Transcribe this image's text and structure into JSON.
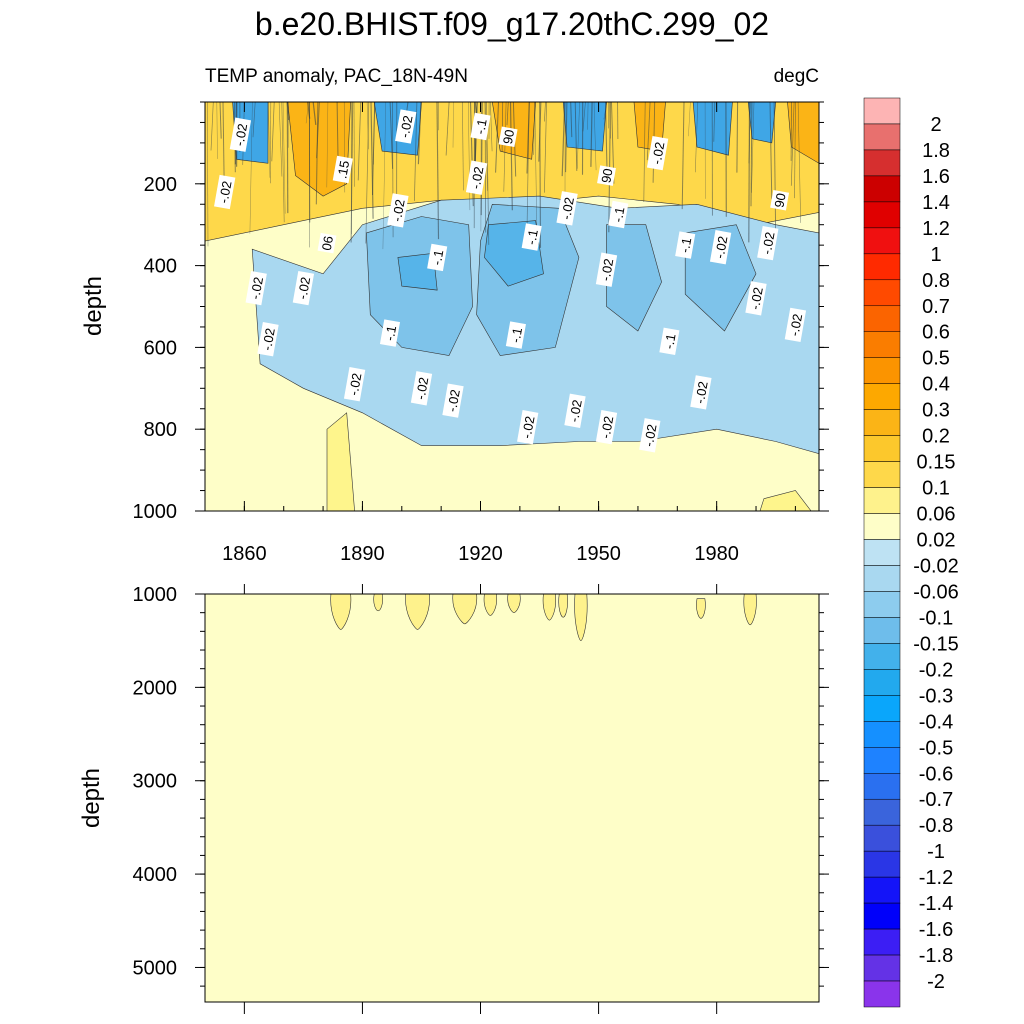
{
  "chart_data": [
    {
      "type": "heatmap",
      "panel": "upper",
      "title": "b.e20.BHIST.f09_g17.20thC.299_02",
      "subtitle_left": "TEMP anomaly, PAC_18N-49N",
      "subtitle_right": "degC",
      "xlabel": "",
      "ylabel": "depth",
      "xlim": [
        1850,
        2006
      ],
      "ylim": [
        0,
        1000
      ],
      "y_inverted": true,
      "x_ticks": [
        1860,
        1890,
        1920,
        1950,
        1980
      ],
      "y_ticks": [
        200,
        400,
        600,
        800,
        1000
      ],
      "bands": [
        {
          "name": "warm-surface",
          "fill": "#fed84a",
          "points": [
            [
              1850,
              0
            ],
            [
              2006,
              0
            ],
            [
              2006,
              270
            ],
            [
              1990,
              300
            ],
            [
              1970,
              250
            ],
            [
              1950,
              230
            ],
            [
              1930,
              250
            ],
            [
              1910,
              240
            ],
            [
              1890,
              260
            ],
            [
              1870,
              300
            ],
            [
              1850,
              340
            ]
          ]
        },
        {
          "name": "strong-warm-1878",
          "fill": "#fbb416",
          "points": [
            [
              1871,
              0
            ],
            [
              1887,
              0
            ],
            [
              1886,
              200
            ],
            [
              1880,
              230
            ],
            [
              1873,
              180
            ]
          ]
        },
        {
          "name": "strong-warm-1927",
          "fill": "#fbb416",
          "points": [
            [
              1923,
              0
            ],
            [
              1934,
              0
            ],
            [
              1933,
              140
            ],
            [
              1925,
              120
            ]
          ]
        },
        {
          "name": "strong-warm-1962",
          "fill": "#fbb416",
          "points": [
            [
              1959,
              0
            ],
            [
              1967,
              0
            ],
            [
              1966,
              120
            ],
            [
              1960,
              110
            ]
          ]
        },
        {
          "name": "strong-warm-2002",
          "fill": "#fbb416",
          "points": [
            [
              1998,
              0
            ],
            [
              2006,
              0
            ],
            [
              2006,
              150
            ],
            [
              1999,
              110
            ]
          ]
        },
        {
          "name": "cool-lens",
          "fill": "#a9d8f0",
          "points": [
            [
              1862,
              360
            ],
            [
              1880,
              420
            ],
            [
              1890,
              300
            ],
            [
              1910,
              240
            ],
            [
              1935,
              230
            ],
            [
              1955,
              260
            ],
            [
              1975,
              250
            ],
            [
              1995,
              300
            ],
            [
              2006,
              320
            ],
            [
              2006,
              860
            ],
            [
              1995,
              830
            ],
            [
              1980,
              800
            ],
            [
              1960,
              830
            ],
            [
              1945,
              830
            ],
            [
              1925,
              840
            ],
            [
              1905,
              840
            ],
            [
              1890,
              760
            ],
            [
              1875,
              700
            ],
            [
              1864,
              640
            ]
          ]
        },
        {
          "name": "mid-cool-1",
          "fill": "#7ec3ea",
          "points": [
            [
              1891,
              320
            ],
            [
              1905,
              280
            ],
            [
              1917,
              300
            ],
            [
              1918,
              500
            ],
            [
              1912,
              620
            ],
            [
              1900,
              600
            ],
            [
              1892,
              520
            ]
          ]
        },
        {
          "name": "mid-cool-2",
          "fill": "#7ec3ea",
          "points": [
            [
              1923,
              250
            ],
            [
              1940,
              260
            ],
            [
              1945,
              380
            ],
            [
              1939,
              600
            ],
            [
              1925,
              620
            ],
            [
              1919,
              520
            ],
            [
              1920,
              340
            ]
          ]
        },
        {
          "name": "mid-cool-3",
          "fill": "#7ec3ea",
          "points": [
            [
              1952,
              300
            ],
            [
              1962,
              300
            ],
            [
              1966,
              440
            ],
            [
              1960,
              560
            ],
            [
              1952,
              500
            ]
          ]
        },
        {
          "name": "mid-cool-4",
          "fill": "#7ec3ea",
          "points": [
            [
              1972,
              320
            ],
            [
              1985,
              300
            ],
            [
              1990,
              420
            ],
            [
              1982,
              560
            ],
            [
              1972,
              470
            ]
          ]
        },
        {
          "name": "deep-cool-1",
          "fill": "#56b4e9",
          "points": [
            [
              1922,
              300
            ],
            [
              1934,
              290
            ],
            [
              1936,
              420
            ],
            [
              1927,
              450
            ],
            [
              1921,
              380
            ]
          ]
        },
        {
          "name": "deep-cool-2",
          "fill": "#56b4e9",
          "points": [
            [
              1899,
              380
            ],
            [
              1908,
              370
            ],
            [
              1909,
              460
            ],
            [
              1900,
              450
            ]
          ]
        },
        {
          "name": "surface-cool-1",
          "fill": "#3fa6e6",
          "points": [
            [
              1857,
              0
            ],
            [
              1866,
              0
            ],
            [
              1866,
              150
            ],
            [
              1858,
              140
            ]
          ]
        },
        {
          "name": "surface-cool-2",
          "fill": "#3fa6e6",
          "points": [
            [
              1893,
              0
            ],
            [
              1905,
              0
            ],
            [
              1904,
              130
            ],
            [
              1895,
              120
            ]
          ]
        },
        {
          "name": "surface-cool-3",
          "fill": "#3fa6e6",
          "points": [
            [
              1941,
              0
            ],
            [
              1952,
              0
            ],
            [
              1951,
              120
            ],
            [
              1942,
              110
            ]
          ]
        },
        {
          "name": "surface-cool-4",
          "fill": "#3fa6e6",
          "points": [
            [
              1974,
              0
            ],
            [
              1984,
              0
            ],
            [
              1983,
              130
            ],
            [
              1975,
              110
            ]
          ]
        },
        {
          "name": "surface-cool-5",
          "fill": "#3fa6e6",
          "points": [
            [
              1988,
              0
            ],
            [
              1995,
              0
            ],
            [
              1994,
              100
            ],
            [
              1989,
              90
            ]
          ]
        },
        {
          "name": "deep-warm-1884",
          "fill": "#fef58c",
          "points": [
            [
              1881,
              800
            ],
            [
              1886,
              760
            ],
            [
              1888,
              1000
            ],
            [
              1881,
              1000
            ]
          ]
        },
        {
          "name": "deep-warm-1995",
          "fill": "#fef58c",
          "points": [
            [
              1992,
              970
            ],
            [
              2000,
              950
            ],
            [
              2004,
              1000
            ],
            [
              1991,
              1000
            ]
          ]
        }
      ],
      "contour_labels": [
        {
          "text": "-.02",
          "x": 1859,
          "y": 80
        },
        {
          "text": "-.02",
          "x": 1855,
          "y": 220
        },
        {
          "text": "-.02",
          "x": 1863,
          "y": 455
        },
        {
          "text": "-.02",
          "x": 1866,
          "y": 580
        },
        {
          "text": "-.02",
          "x": 1875,
          "y": 455
        },
        {
          "text": "06",
          "x": 1881,
          "y": 345
        },
        {
          "text": ".15",
          "x": 1885,
          "y": 165
        },
        {
          "text": "-.02",
          "x": 1888,
          "y": 690
        },
        {
          "text": "-.02",
          "x": 1899,
          "y": 265
        },
        {
          "text": "-.02",
          "x": 1901,
          "y": 60
        },
        {
          "text": "-.1",
          "x": 1897,
          "y": 565
        },
        {
          "text": "-.02",
          "x": 1905,
          "y": 700
        },
        {
          "text": "-.1",
          "x": 1909,
          "y": 380
        },
        {
          "text": "-.02",
          "x": 1913,
          "y": 730
        },
        {
          "text": "-.02",
          "x": 1919,
          "y": 185
        },
        {
          "text": "-.1",
          "x": 1920,
          "y": 60
        },
        {
          "text": "90",
          "x": 1927,
          "y": 85
        },
        {
          "text": "-.1",
          "x": 1929,
          "y": 570
        },
        {
          "text": "-.1",
          "x": 1933,
          "y": 330
        },
        {
          "text": "-.02",
          "x": 1932,
          "y": 795
        },
        {
          "text": "-.02",
          "x": 1942,
          "y": 260
        },
        {
          "text": "-.02",
          "x": 1944,
          "y": 755
        },
        {
          "text": "90",
          "x": 1952,
          "y": 180
        },
        {
          "text": "-.02",
          "x": 1952,
          "y": 410
        },
        {
          "text": "-.1",
          "x": 1955,
          "y": 275
        },
        {
          "text": "-.02",
          "x": 1952,
          "y": 795
        },
        {
          "text": "-.02",
          "x": 1965,
          "y": 125
        },
        {
          "text": "-.02",
          "x": 1963,
          "y": 815
        },
        {
          "text": "-.1",
          "x": 1968,
          "y": 585
        },
        {
          "text": "-.1",
          "x": 1972,
          "y": 350
        },
        {
          "text": "-.02",
          "x": 1976,
          "y": 710
        },
        {
          "text": "-.02",
          "x": 1981,
          "y": 355
        },
        {
          "text": "-.02",
          "x": 1990,
          "y": 480
        },
        {
          "text": "-.02",
          "x": 1993,
          "y": 345
        },
        {
          "text": "90",
          "x": 1996,
          "y": 240
        },
        {
          "text": "-.02",
          "x": 2000,
          "y": 545
        }
      ]
    },
    {
      "type": "heatmap",
      "panel": "lower",
      "xlabel": "",
      "ylabel": "depth",
      "xlim": [
        1850,
        2006
      ],
      "ylim": [
        1000,
        5370
      ],
      "y_inverted": true,
      "y_ticks": [
        1000,
        2000,
        3000,
        4000,
        5000
      ],
      "x_ticks": [
        1860,
        1890,
        1920,
        1950,
        1980
      ],
      "fill": "#fefec8",
      "blobs": [
        {
          "x": [
            1882,
            1887
          ],
          "y": [
            1000,
            1380
          ]
        },
        {
          "x": [
            1893,
            1895
          ],
          "y": [
            1000,
            1180
          ]
        },
        {
          "x": [
            1901,
            1907
          ],
          "y": [
            1000,
            1380
          ]
        },
        {
          "x": [
            1913,
            1919
          ],
          "y": [
            1000,
            1320
          ]
        },
        {
          "x": [
            1921,
            1924
          ],
          "y": [
            1000,
            1230
          ]
        },
        {
          "x": [
            1927,
            1930
          ],
          "y": [
            1000,
            1200
          ]
        },
        {
          "x": [
            1936,
            1939
          ],
          "y": [
            1000,
            1280
          ]
        },
        {
          "x": [
            1940,
            1942
          ],
          "y": [
            1000,
            1250
          ]
        },
        {
          "x": [
            1944,
            1947
          ],
          "y": [
            1000,
            1500
          ]
        },
        {
          "x": [
            1975,
            1977
          ],
          "y": [
            1050,
            1260
          ]
        },
        {
          "x": [
            1987,
            1990
          ],
          "y": [
            1000,
            1330
          ]
        }
      ]
    }
  ],
  "colorbar": {
    "labels": [
      "2",
      "1.8",
      "1.6",
      "1.4",
      "1.2",
      "1",
      "0.8",
      "0.7",
      "0.6",
      "0.5",
      "0.4",
      "0.3",
      "0.2",
      "0.15",
      "0.1",
      "0.06",
      "0.02",
      "-0.02",
      "-0.06",
      "-0.1",
      "-0.15",
      "-0.2",
      "-0.3",
      "-0.4",
      "-0.5",
      "-0.6",
      "-0.7",
      "-0.8",
      "-1",
      "-1.2",
      "-1.4",
      "-1.6",
      "-1.8",
      "-2"
    ],
    "colors": [
      "#fdb4b4",
      "#e8706e",
      "#d62f2f",
      "#cc0000",
      "#e00000",
      "#f01010",
      "#ff2a00",
      "#ff4a00",
      "#fb6400",
      "#fa7d00",
      "#fb9400",
      "#fda800",
      "#fbb416",
      "#fcc82c",
      "#fed84a",
      "#fef28c",
      "#fefec8",
      "#bee2f3",
      "#a9d8f0",
      "#8dccee",
      "#6ebdeb",
      "#42b1eb",
      "#22a9ee",
      "#0aa6fb",
      "#1590ff",
      "#1e82ff",
      "#2a70f0",
      "#3a64dc",
      "#3a50dc",
      "#2a36e6",
      "#1414f8",
      "#0000fa",
      "#3c1ef4",
      "#6432e6",
      "#8a34eb"
    ]
  }
}
